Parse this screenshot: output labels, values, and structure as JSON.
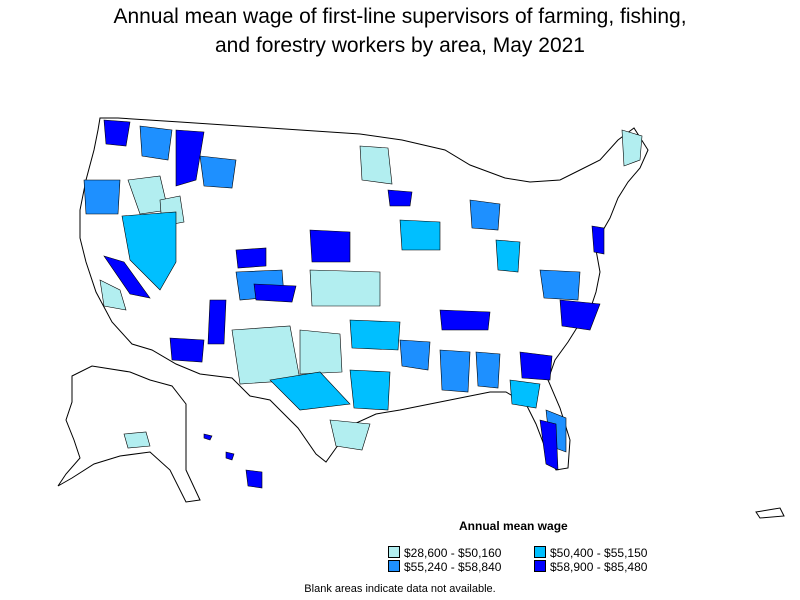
{
  "title_line1": "Annual mean wage of first-line supervisors of farming, fishing,",
  "title_line2": "and forestry workers by area, May 2021",
  "legend": {
    "title": "Annual mean wage",
    "items": [
      {
        "label": "$28,600 - $50,160",
        "color": "#b2eef0"
      },
      {
        "label": "$50,400 - $55,150",
        "color": "#00bfff"
      },
      {
        "label": "$55,240 - $58,840",
        "color": "#1e90ff"
      },
      {
        "label": "$58,900 - $85,480",
        "color": "#0000ff"
      }
    ]
  },
  "note": "Blank areas indicate data not available.",
  "colors": {
    "outline": "#000000",
    "blank": "#ffffff"
  }
}
